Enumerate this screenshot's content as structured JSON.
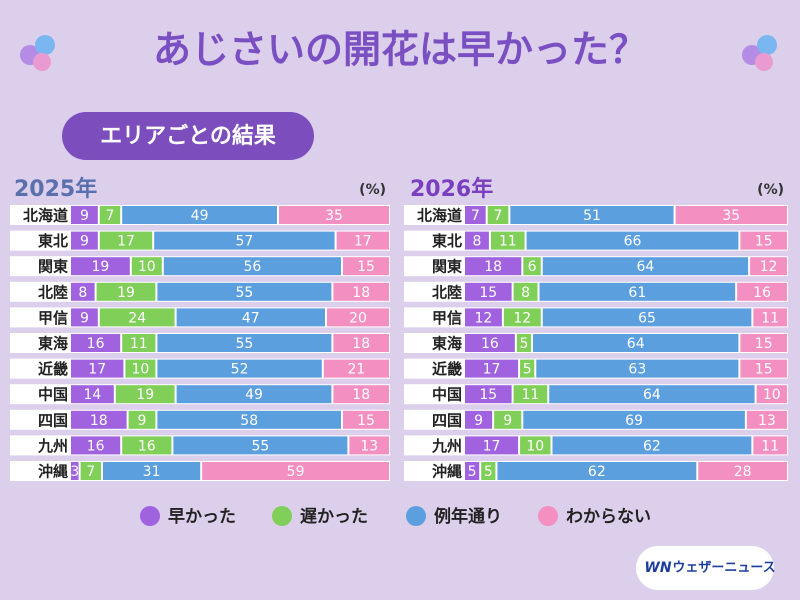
{
  "title": "あじさいの開花は早かった？",
  "subtitle": "エリアごとの結果",
  "logo_mark": "WN",
  "logo": "ウェザーニュース",
  "chart_data": [
    {
      "type": "stacked-bar",
      "title": "2025年",
      "unit": "(%)",
      "xlim": [
        0,
        100
      ],
      "categories": [
        "北海道",
        "東北",
        "関東",
        "北陸",
        "甲信",
        "東海",
        "近畿",
        "中国",
        "四国",
        "九州",
        "沖縄"
      ],
      "series": [
        {
          "name": "早かった",
          "color": "#a062df",
          "values": [
            9,
            9,
            19,
            8,
            9,
            16,
            17,
            14,
            18,
            16,
            3
          ]
        },
        {
          "name": "遅かった",
          "color": "#80cf58",
          "values": [
            7,
            17,
            10,
            19,
            24,
            11,
            10,
            19,
            9,
            16,
            7
          ]
        },
        {
          "name": "例年通り",
          "color": "#5c9fdf",
          "values": [
            49,
            57,
            56,
            55,
            47,
            55,
            52,
            49,
            58,
            55,
            31
          ]
        },
        {
          "name": "わからない",
          "color": "#f48fc2",
          "values": [
            35,
            17,
            15,
            18,
            20,
            18,
            21,
            18,
            15,
            13,
            59
          ]
        }
      ]
    },
    {
      "type": "stacked-bar",
      "title": "2026年",
      "unit": "(%)",
      "xlim": [
        0,
        100
      ],
      "categories": [
        "北海道",
        "東北",
        "関東",
        "北陸",
        "甲信",
        "東海",
        "近畿",
        "中国",
        "四国",
        "九州",
        "沖縄"
      ],
      "series": [
        {
          "name": "早かった",
          "color": "#a062df",
          "values": [
            7,
            8,
            18,
            15,
            12,
            16,
            17,
            15,
            9,
            17,
            5
          ]
        },
        {
          "name": "遅かった",
          "color": "#80cf58",
          "values": [
            7,
            11,
            6,
            8,
            12,
            5,
            5,
            11,
            9,
            10,
            5
          ]
        },
        {
          "name": "例年通り",
          "color": "#5c9fdf",
          "values": [
            51,
            66,
            64,
            61,
            65,
            64,
            63,
            64,
            69,
            62,
            62
          ]
        },
        {
          "name": "わからない",
          "color": "#f48fc2",
          "values": [
            35,
            15,
            12,
            16,
            11,
            15,
            15,
            10,
            13,
            11,
            28
          ]
        }
      ]
    }
  ]
}
